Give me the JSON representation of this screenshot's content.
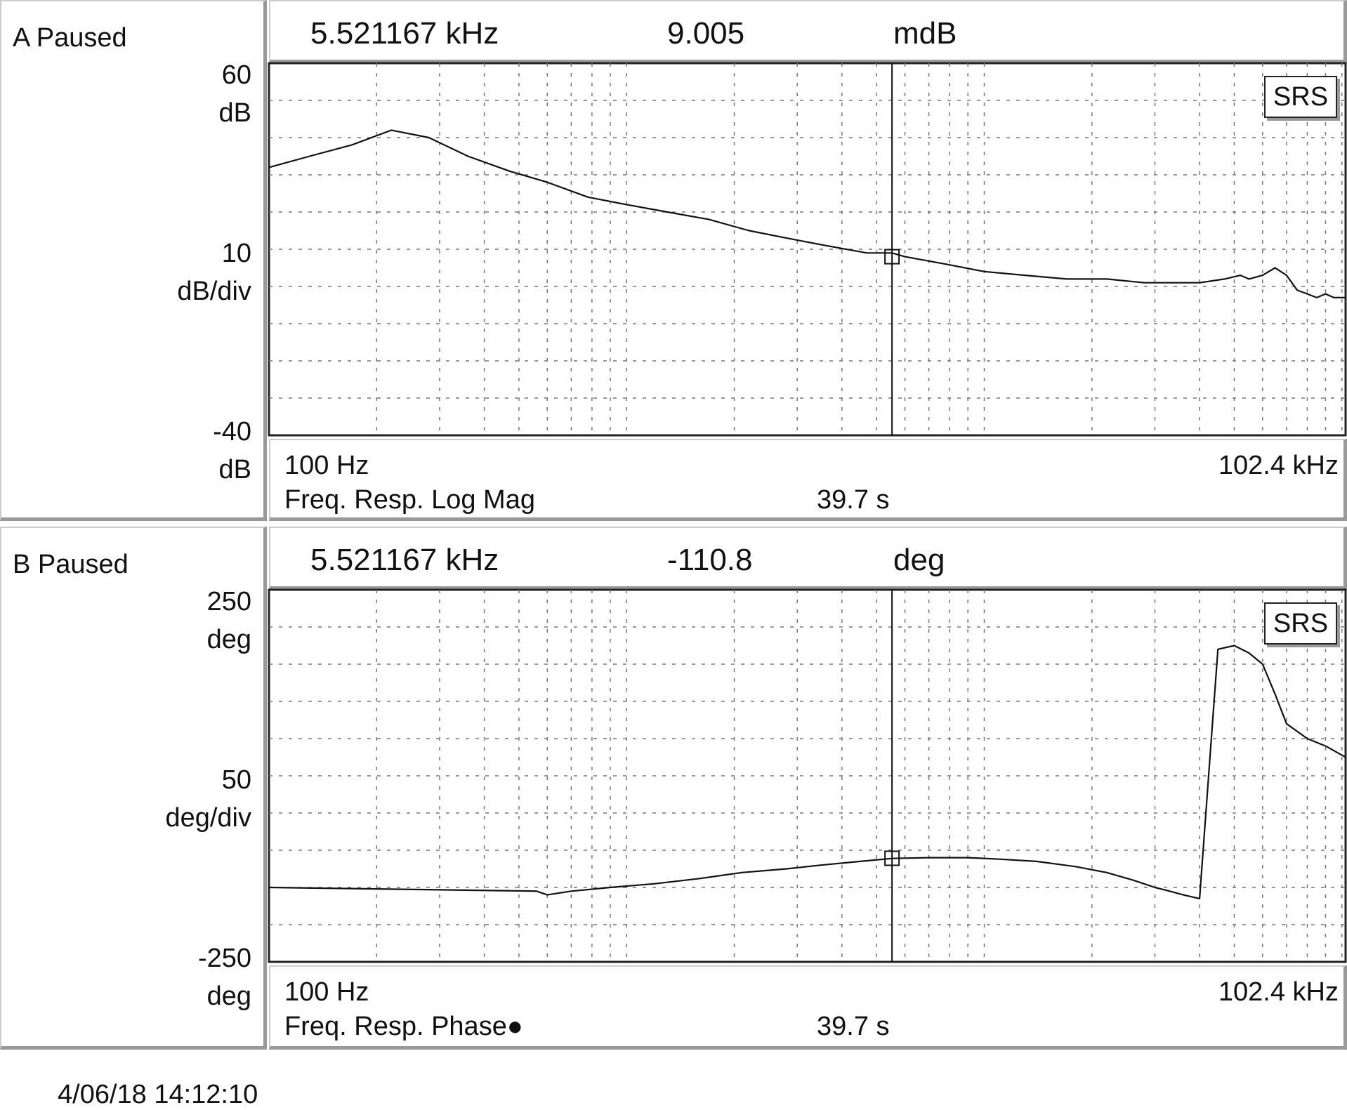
{
  "footer": {
    "timestamp": "4/06/18  14:12:10"
  },
  "badge": {
    "label": "SRS"
  },
  "chart_data": [
    {
      "type": "line",
      "status": "A Paused",
      "marker": {
        "x_label": "5.521167 kHz",
        "x": 5521.167,
        "value": "9.005",
        "unit": "mdB"
      },
      "y_top": {
        "value": "60",
        "unit": "dB"
      },
      "y_div": {
        "value": "10",
        "unit": "dB/div"
      },
      "y_bottom": {
        "value": "-40",
        "unit": "dB"
      },
      "x_start_label": "100 Hz",
      "x_end_label": "102.4 kHz",
      "measurement": "Freq. Resp. Log Mag",
      "time": "39.7 s",
      "x_scale": "log",
      "xlim": [
        100,
        102400
      ],
      "ylim": [
        -40,
        60
      ],
      "grid": true,
      "series": [
        {
          "x": [
            100,
            130,
            170,
            220,
            280,
            360,
            470,
            600,
            780,
            1000,
            1300,
            1700,
            2200,
            2800,
            3600,
            4700,
            5521,
            6000,
            7800,
            10000,
            13000,
            17000,
            22000,
            28000,
            36000,
            40000,
            47000,
            52000,
            55000,
            60000,
            65000,
            70000,
            75000,
            80000,
            85000,
            90000,
            95000,
            102400
          ],
          "y": [
            32,
            35,
            38,
            42,
            40,
            35,
            31,
            28,
            24,
            22,
            20,
            18,
            15,
            13,
            11,
            9,
            9,
            8,
            6,
            4,
            3,
            2,
            2,
            1,
            1,
            1,
            2,
            3,
            2,
            3,
            5,
            3,
            -1,
            -2,
            -3,
            -2,
            -3,
            -3
          ]
        }
      ]
    },
    {
      "type": "line",
      "status": "B Paused",
      "marker": {
        "x_label": "5.521167 kHz",
        "x": 5521.167,
        "value": "-110.8",
        "unit": "deg"
      },
      "y_top": {
        "value": "250",
        "unit": "deg"
      },
      "y_div": {
        "value": "50",
        "unit": "deg/div"
      },
      "y_bottom": {
        "value": "-250",
        "unit": "deg"
      },
      "x_start_label": "100 Hz",
      "x_end_label": "102.4 kHz",
      "measurement": "Freq. Resp. Phase●",
      "time": "39.7 s",
      "x_scale": "log",
      "xlim": [
        100,
        102400
      ],
      "ylim": [
        -250,
        250
      ],
      "grid": true,
      "series": [
        {
          "x": [
            100,
            560,
            600,
            700,
            900,
            1200,
            1600,
            2100,
            2800,
            3500,
            4500,
            5521,
            7000,
            9000,
            11000,
            14000,
            18000,
            22000,
            26000,
            30000,
            33000,
            36000,
            40000,
            45000,
            50000,
            55000,
            60000,
            65000,
            70000,
            80000,
            90000,
            102400
          ],
          "y": [
            -150,
            -155,
            -160,
            -155,
            -150,
            -145,
            -138,
            -130,
            -125,
            -120,
            -115,
            -111,
            -110,
            -110,
            -112,
            -115,
            -122,
            -130,
            -140,
            -150,
            -155,
            -160,
            -165,
            170,
            175,
            165,
            150,
            110,
            70,
            50,
            40,
            25
          ]
        }
      ]
    }
  ]
}
